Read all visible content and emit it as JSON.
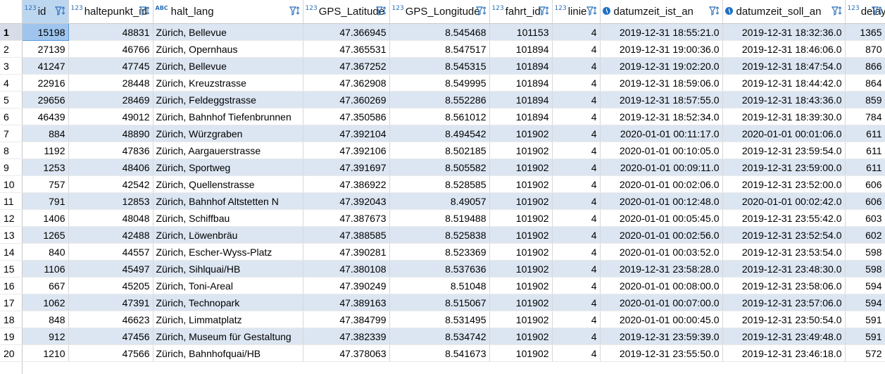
{
  "columns": [
    {
      "name": "id",
      "type": "num"
    },
    {
      "name": "haltepunkt_id",
      "type": "num"
    },
    {
      "name": "halt_lang",
      "type": "abc"
    },
    {
      "name": "GPS_Latitude",
      "type": "num"
    },
    {
      "name": "GPS_Longitude",
      "type": "num"
    },
    {
      "name": "fahrt_id",
      "type": "num"
    },
    {
      "name": "linie",
      "type": "num"
    },
    {
      "name": "datumzeit_ist_an",
      "type": "clock"
    },
    {
      "name": "datumzeit_soll_an",
      "type": "clock"
    },
    {
      "name": "delay",
      "type": "num"
    }
  ],
  "type_labels": {
    "num": "123",
    "abc": "ABC"
  },
  "colors": {
    "row_stripe": "#dce6f2",
    "selected_cell": "#9fc5ee",
    "icon_blue": "#2a6fb8"
  },
  "rows": [
    [
      "1",
      "15198",
      "48831",
      "Zürich, Bellevue",
      "47.366945",
      "8.545468",
      "101153",
      "4",
      "2019-12-31 18:55:21.0",
      "2019-12-31 18:32:36.0",
      "1365"
    ],
    [
      "2",
      "27139",
      "46766",
      "Zürich, Opernhaus",
      "47.365531",
      "8.547517",
      "101894",
      "4",
      "2019-12-31 19:00:36.0",
      "2019-12-31 18:46:06.0",
      "870"
    ],
    [
      "3",
      "41247",
      "47745",
      "Zürich, Bellevue",
      "47.367252",
      "8.545315",
      "101894",
      "4",
      "2019-12-31 19:02:20.0",
      "2019-12-31 18:47:54.0",
      "866"
    ],
    [
      "4",
      "22916",
      "28448",
      "Zürich, Kreuzstrasse",
      "47.362908",
      "8.549995",
      "101894",
      "4",
      "2019-12-31 18:59:06.0",
      "2019-12-31 18:44:42.0",
      "864"
    ],
    [
      "5",
      "29656",
      "28469",
      "Zürich, Feldeggstrasse",
      "47.360269",
      "8.552286",
      "101894",
      "4",
      "2019-12-31 18:57:55.0",
      "2019-12-31 18:43:36.0",
      "859"
    ],
    [
      "6",
      "46439",
      "49012",
      "Zürich, Bahnhof Tiefenbrunnen",
      "47.350586",
      "8.561012",
      "101894",
      "4",
      "2019-12-31 18:52:34.0",
      "2019-12-31 18:39:30.0",
      "784"
    ],
    [
      "7",
      "884",
      "48890",
      "Zürich, Würzgraben",
      "47.392104",
      "8.494542",
      "101902",
      "4",
      "2020-01-01 00:11:17.0",
      "2020-01-01 00:01:06.0",
      "611"
    ],
    [
      "8",
      "1192",
      "47836",
      "Zürich, Aargauerstrasse",
      "47.392106",
      "8.502185",
      "101902",
      "4",
      "2020-01-01 00:10:05.0",
      "2019-12-31 23:59:54.0",
      "611"
    ],
    [
      "9",
      "1253",
      "48406",
      "Zürich, Sportweg",
      "47.391697",
      "8.505582",
      "101902",
      "4",
      "2020-01-01 00:09:11.0",
      "2019-12-31 23:59:00.0",
      "611"
    ],
    [
      "10",
      "757",
      "42542",
      "Zürich, Quellenstrasse",
      "47.386922",
      "8.528585",
      "101902",
      "4",
      "2020-01-01 00:02:06.0",
      "2019-12-31 23:52:00.0",
      "606"
    ],
    [
      "11",
      "791",
      "12853",
      "Zürich, Bahnhof Altstetten N",
      "47.392043",
      "8.49057",
      "101902",
      "4",
      "2020-01-01 00:12:48.0",
      "2020-01-01 00:02:42.0",
      "606"
    ],
    [
      "12",
      "1406",
      "48048",
      "Zürich, Schiffbau",
      "47.387673",
      "8.519488",
      "101902",
      "4",
      "2020-01-01 00:05:45.0",
      "2019-12-31 23:55:42.0",
      "603"
    ],
    [
      "13",
      "1265",
      "42488",
      "Zürich, Löwenbräu",
      "47.388585",
      "8.525838",
      "101902",
      "4",
      "2020-01-01 00:02:56.0",
      "2019-12-31 23:52:54.0",
      "602"
    ],
    [
      "14",
      "840",
      "44557",
      "Zürich, Escher-Wyss-Platz",
      "47.390281",
      "8.523369",
      "101902",
      "4",
      "2020-01-01 00:03:52.0",
      "2019-12-31 23:53:54.0",
      "598"
    ],
    [
      "15",
      "1106",
      "45497",
      "Zürich, Sihlquai/HB",
      "47.380108",
      "8.537636",
      "101902",
      "4",
      "2019-12-31 23:58:28.0",
      "2019-12-31 23:48:30.0",
      "598"
    ],
    [
      "16",
      "667",
      "45205",
      "Zürich, Toni-Areal",
      "47.390249",
      "8.51048",
      "101902",
      "4",
      "2020-01-01 00:08:00.0",
      "2019-12-31 23:58:06.0",
      "594"
    ],
    [
      "17",
      "1062",
      "47391",
      "Zürich, Technopark",
      "47.389163",
      "8.515067",
      "101902",
      "4",
      "2020-01-01 00:07:00.0",
      "2019-12-31 23:57:06.0",
      "594"
    ],
    [
      "18",
      "848",
      "46623",
      "Zürich, Limmatplatz",
      "47.384799",
      "8.531495",
      "101902",
      "4",
      "2020-01-01 00:00:45.0",
      "2019-12-31 23:50:54.0",
      "591"
    ],
    [
      "19",
      "912",
      "47456",
      "Zürich, Museum für Gestaltung",
      "47.382339",
      "8.534742",
      "101902",
      "4",
      "2019-12-31 23:59:39.0",
      "2019-12-31 23:49:48.0",
      "591"
    ],
    [
      "20",
      "1210",
      "47566",
      "Zürich, Bahnhofquai/HB",
      "47.378063",
      "8.541673",
      "101902",
      "4",
      "2019-12-31 23:55:50.0",
      "2019-12-31 23:46:18.0",
      "572"
    ]
  ]
}
